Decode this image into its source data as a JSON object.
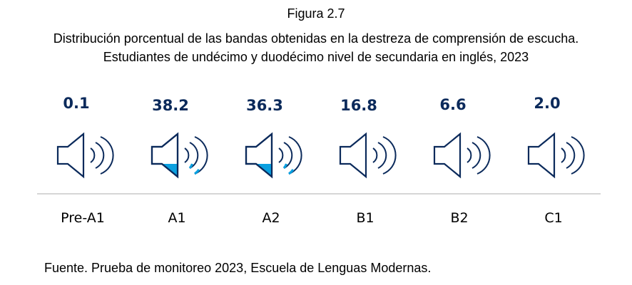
{
  "figure_label": "Figura 2.7",
  "chart_data": {
    "type": "pictograph",
    "title": [
      "Distribución porcentual de las bandas obtenidas en la destreza de comprensión de escucha.",
      "Estudiantes de undécimo y duodécimo nivel de secundaria en inglés, 2023"
    ],
    "categories": [
      "Pre-A1",
      "A1",
      "A2",
      "B1",
      "B2",
      "C1"
    ],
    "values": [
      "0.1",
      "38.2",
      "36.3",
      "16.8",
      "6.6",
      "2.0"
    ],
    "highlighted": [
      "A1",
      "A2"
    ],
    "icon": "speaker-icon",
    "colors": {
      "outline": "#0b2a5b",
      "highlight": "#0aa0e0",
      "baseline": "#c8c8c8"
    }
  },
  "source": "Fuente. Prueba de monitoreo 2023, Escuela de Lenguas Modernas."
}
